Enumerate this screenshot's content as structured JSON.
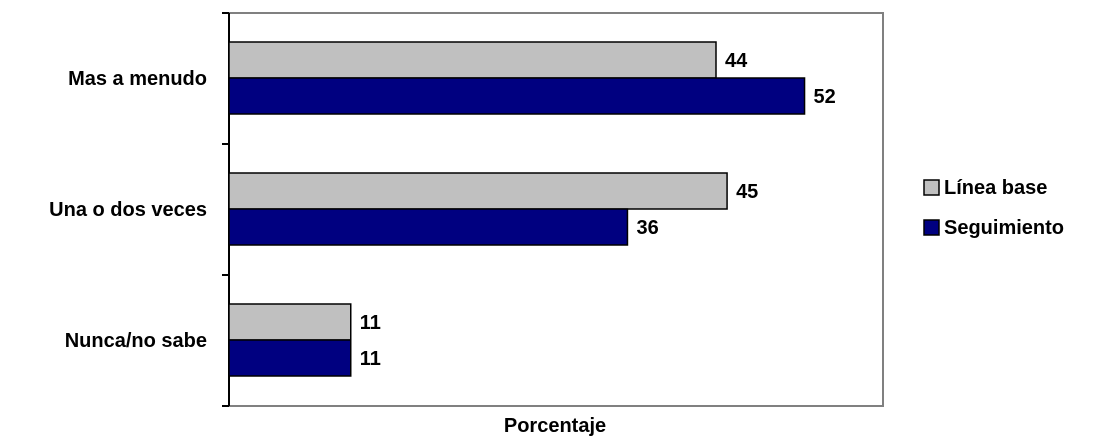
{
  "chart_data": {
    "type": "bar",
    "orientation": "horizontal",
    "categories": [
      "Mas a menudo",
      "Una o dos veces",
      "Nunca/no sabe"
    ],
    "series": [
      {
        "name": "Línea base",
        "values": [
          44,
          45,
          11
        ],
        "color": "#c0c0c0"
      },
      {
        "name": "Seguimiento",
        "values": [
          52,
          36,
          11
        ],
        "color": "#000080"
      }
    ],
    "title": "",
    "xlabel": "Porcentaje",
    "ylabel": "",
    "xlim": [
      0,
      60
    ],
    "grid": false,
    "legend_position": "right"
  }
}
